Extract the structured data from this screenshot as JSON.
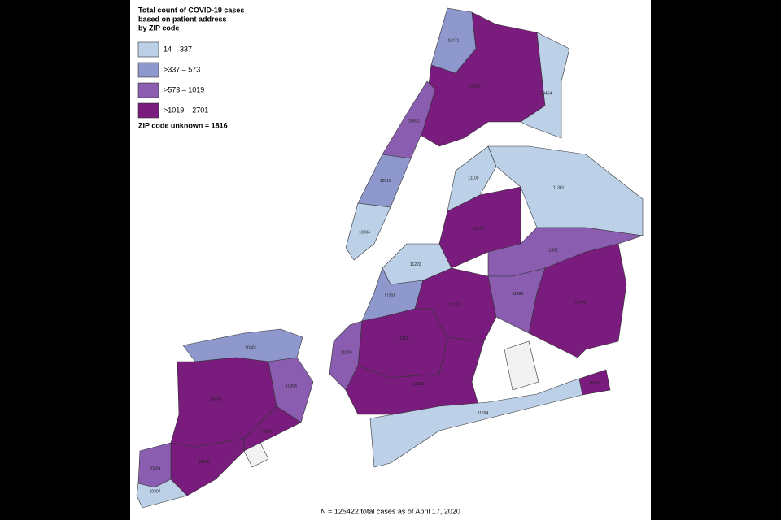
{
  "map": {
    "title_lines": [
      "Total count of COVID-19 cases",
      "based on patient address",
      "by ZIP code"
    ],
    "legend": [
      {
        "label": "14 – 337",
        "color": "#bcd0e8"
      },
      {
        "label": ">337 – 573",
        "color": "#8f98cc"
      },
      {
        "label": ">573 – 1019",
        "color": "#8a5db0"
      },
      {
        "label": ">1019 – 2701",
        "color": "#7a1c7d"
      }
    ],
    "unknown_note": "ZIP code unknown = 1816",
    "footnote": "N = 125422 total cases as of April 17, 2020",
    "regions": [
      {
        "zip": "10301",
        "color": "#8f98cc"
      },
      {
        "zip": "10314",
        "color": "#7a1c7d"
      },
      {
        "zip": "10304",
        "color": "#8a5db0"
      },
      {
        "zip": "10306",
        "color": "#7a1c7d"
      },
      {
        "zip": "10312",
        "color": "#7a1c7d"
      },
      {
        "zip": "10309",
        "color": "#8a5db0"
      },
      {
        "zip": "10307",
        "color": "#bcd0e8"
      },
      {
        "zip": "11222",
        "color": "#bcd0e8"
      },
      {
        "zip": "11201",
        "color": "#8f98cc"
      },
      {
        "zip": "11207",
        "color": "#7a1c7d"
      },
      {
        "zip": "11226",
        "color": "#7a1c7d"
      },
      {
        "zip": "11209",
        "color": "#8a5db0"
      },
      {
        "zip": "11229",
        "color": "#7a1c7d"
      },
      {
        "zip": "11105",
        "color": "#bcd0e8"
      },
      {
        "zip": "11373",
        "color": "#7a1c7d"
      },
      {
        "zip": "11361",
        "color": "#bcd0e8"
      },
      {
        "zip": "11432",
        "color": "#8a5db0"
      },
      {
        "zip": "11434",
        "color": "#7a1c7d"
      },
      {
        "zip": "11420",
        "color": "#8a5db0"
      },
      {
        "zip": "10471",
        "color": "#8f98cc"
      },
      {
        "zip": "10467",
        "color": "#7a1c7d"
      },
      {
        "zip": "10464",
        "color": "#bcd0e8"
      },
      {
        "zip": "10004",
        "color": "#bcd0e8"
      },
      {
        "zip": "10019",
        "color": "#8f98cc"
      },
      {
        "zip": "10031",
        "color": "#8a5db0"
      },
      {
        "zip": "11694",
        "color": "#bcd0e8"
      },
      {
        "zip": "11691",
        "color": "#7a1c7d"
      }
    ]
  }
}
